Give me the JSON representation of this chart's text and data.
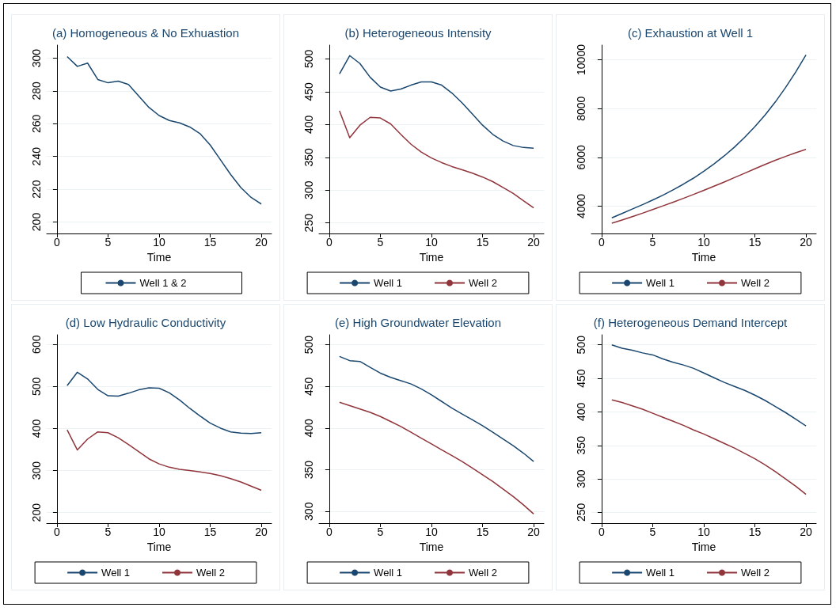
{
  "chart_data": [
    {
      "type": "line",
      "title": "(a) Homogeneous & No Exhuastion",
      "xlabel": "Time",
      "x": [
        1,
        2,
        3,
        4,
        5,
        6,
        7,
        8,
        9,
        10,
        11,
        12,
        13,
        14,
        15,
        16,
        17,
        18,
        19,
        20
      ],
      "xlim": [
        -1,
        21
      ],
      "xticks": [
        0,
        5,
        10,
        15,
        20
      ],
      "ylim": [
        193,
        308
      ],
      "yticks": [
        200,
        220,
        240,
        260,
        280,
        300
      ],
      "grid": "y",
      "legend": "bottom",
      "marker": "none",
      "series": [
        {
          "name": "Well 1 & 2",
          "color": "#1a476f",
          "values": [
            301,
            295,
            297,
            287,
            285,
            286,
            284,
            277,
            270,
            265,
            262,
            260.5,
            258,
            254,
            247,
            238,
            229,
            221,
            215,
            211
          ]
        }
      ]
    },
    {
      "type": "line",
      "title": "(b) Heterogeneous Intensity",
      "xlabel": "Time",
      "x": [
        1,
        2,
        3,
        4,
        5,
        6,
        7,
        8,
        9,
        10,
        11,
        12,
        13,
        14,
        15,
        16,
        17,
        18,
        19,
        20
      ],
      "xlim": [
        -1,
        21
      ],
      "xticks": [
        0,
        5,
        10,
        15,
        20
      ],
      "ylim": [
        234,
        521
      ],
      "yticks": [
        250,
        300,
        350,
        400,
        450,
        500
      ],
      "grid": "y",
      "legend": "bottom",
      "marker": "none",
      "series": [
        {
          "name": "Well 1",
          "color": "#1a476f",
          "values": [
            477,
            505,
            493,
            472,
            457,
            451,
            454,
            460,
            465,
            465,
            460,
            448,
            433,
            416,
            399,
            385,
            375,
            368,
            365,
            364
          ]
        },
        {
          "name": "Well 2",
          "color": "#90353b",
          "values": [
            421,
            380,
            399,
            411,
            410,
            401,
            385,
            370,
            358,
            349,
            342,
            336,
            331,
            326,
            320,
            313,
            304,
            295,
            284,
            273
          ]
        }
      ]
    },
    {
      "type": "line",
      "title": "(c) Exhaustion at Well 1",
      "xlabel": "Time",
      "x": [
        1,
        2,
        3,
        4,
        5,
        6,
        7,
        8,
        9,
        10,
        11,
        12,
        13,
        14,
        15,
        16,
        17,
        18,
        19,
        20
      ],
      "xlim": [
        -1,
        21
      ],
      "xticks": [
        0,
        5,
        10,
        15,
        20
      ],
      "ylim": [
        2880,
        10600
      ],
      "yticks": [
        4000,
        6000,
        8000,
        10000
      ],
      "grid": "y",
      "legend": "bottom",
      "marker": "none",
      "series": [
        {
          "name": "Well 1",
          "color": "#1a476f",
          "values": [
            3520,
            3700,
            3880,
            4060,
            4250,
            4450,
            4670,
            4900,
            5150,
            5430,
            5730,
            6060,
            6420,
            6820,
            7260,
            7740,
            8270,
            8860,
            9500,
            10200
          ]
        },
        {
          "name": "Well 2",
          "color": "#90353b",
          "values": [
            3300,
            3430,
            3570,
            3710,
            3860,
            4010,
            4160,
            4320,
            4480,
            4650,
            4820,
            4990,
            5170,
            5350,
            5530,
            5710,
            5880,
            6040,
            6190,
            6330
          ]
        }
      ]
    },
    {
      "type": "line",
      "title": "(d) Low Hydraulic Conductivity",
      "xlabel": "Time",
      "x": [
        1,
        2,
        3,
        4,
        5,
        6,
        7,
        8,
        9,
        10,
        11,
        12,
        13,
        14,
        15,
        16,
        17,
        18,
        19,
        20
      ],
      "xlim": [
        -1,
        21
      ],
      "xticks": [
        0,
        5,
        10,
        15,
        20
      ],
      "ylim": [
        175,
        623
      ],
      "yticks": [
        200,
        300,
        400,
        500,
        600
      ],
      "grid": "y",
      "legend": "bottom",
      "marker": "none",
      "series": [
        {
          "name": "Well 1",
          "color": "#1a476f",
          "values": [
            502,
            534,
            518,
            493,
            478,
            477,
            484,
            492,
            497,
            496,
            485,
            468,
            448,
            430,
            413,
            401,
            392,
            389,
            388,
            390
          ]
        },
        {
          "name": "Well 2",
          "color": "#90353b",
          "values": [
            397,
            349,
            375,
            392,
            390,
            378,
            362,
            345,
            328,
            316,
            308,
            303,
            300,
            297,
            293,
            288,
            281,
            273,
            263,
            253
          ]
        }
      ]
    },
    {
      "type": "line",
      "title": "(e) High Groundwater Elevation",
      "xlabel": "Time",
      "x": [
        1,
        2,
        3,
        4,
        5,
        6,
        7,
        8,
        9,
        10,
        11,
        12,
        13,
        14,
        15,
        16,
        17,
        18,
        19,
        20
      ],
      "xlim": [
        -1,
        21
      ],
      "xticks": [
        0,
        5,
        10,
        15,
        20
      ],
      "ylim": [
        286,
        512
      ],
      "yticks": [
        300,
        350,
        400,
        450,
        500
      ],
      "grid": "y",
      "legend": "bottom",
      "marker": "none",
      "series": [
        {
          "name": "Well 1",
          "color": "#1a476f",
          "values": [
            486,
            481,
            480,
            473,
            466,
            461,
            457,
            453,
            447,
            440,
            432,
            424,
            417,
            410,
            403,
            395,
            387,
            379,
            370,
            360
          ]
        },
        {
          "name": "Well 2",
          "color": "#90353b",
          "values": [
            431,
            427,
            423,
            419,
            414,
            408,
            402,
            395,
            388,
            381,
            374,
            367,
            360,
            352,
            344,
            336,
            327,
            318,
            308,
            297
          ]
        }
      ]
    },
    {
      "type": "line",
      "title": "(f) Heterogeneous Demand Intercept",
      "xlabel": "Time",
      "x": [
        1,
        2,
        3,
        4,
        5,
        6,
        7,
        8,
        9,
        10,
        11,
        12,
        13,
        14,
        15,
        16,
        17,
        18,
        19,
        20
      ],
      "xlim": [
        -1,
        21
      ],
      "xticks": [
        0,
        5,
        10,
        15,
        20
      ],
      "ylim": [
        234,
        515
      ],
      "yticks": [
        250,
        300,
        350,
        400,
        450,
        500
      ],
      "grid": "y",
      "legend": "bottom",
      "marker": "none",
      "series": [
        {
          "name": "Well 1",
          "color": "#1a476f",
          "values": [
            500,
            495,
            492,
            488,
            485,
            479,
            474,
            470,
            465,
            458,
            451,
            444,
            438,
            432,
            425,
            417,
            408,
            399,
            389,
            379
          ]
        },
        {
          "name": "Well 2",
          "color": "#90353b",
          "values": [
            418,
            414,
            409,
            404,
            398,
            392,
            386,
            380,
            373,
            367,
            360,
            353,
            346,
            338,
            330,
            321,
            311,
            300,
            289,
            277
          ]
        }
      ]
    }
  ]
}
